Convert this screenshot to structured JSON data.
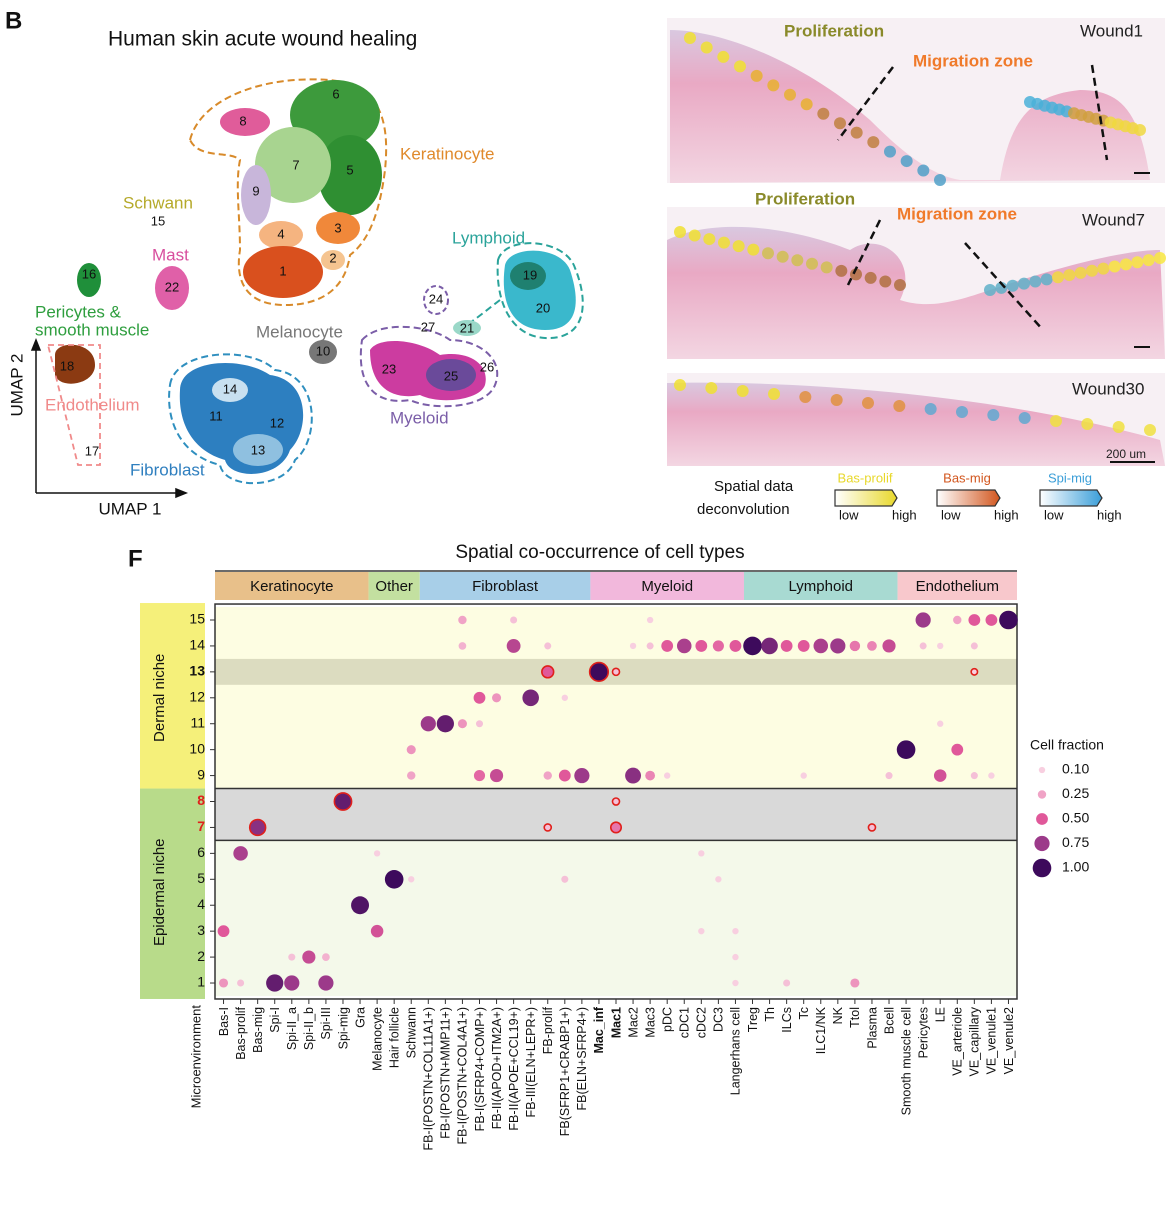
{
  "panel_b": {
    "label": "B",
    "umap": {
      "title": "Human skin acute wound healing",
      "x_label": "UMAP 1",
      "y_label": "UMAP 2",
      "clusters": [
        "1",
        "2",
        "3",
        "4",
        "5",
        "6",
        "7",
        "8",
        "9",
        "10",
        "11",
        "12",
        "13",
        "14",
        "15",
        "16",
        "17",
        "18",
        "19",
        "20",
        "21",
        "22",
        "23",
        "24",
        "25",
        "26",
        "27"
      ],
      "cell_types": [
        {
          "name": "Keratinocyte",
          "color": "#e08a2c"
        },
        {
          "name": "Schwann",
          "color": "#b5a92a"
        },
        {
          "name": "Mast",
          "color": "#d84f9e"
        },
        {
          "name": "Lymphoid",
          "color": "#2aa39a"
        },
        {
          "name": "Pericytes &",
          "color": "#2e9e3e"
        },
        {
          "name": "smooth muscle",
          "color": "#2e9e3e"
        },
        {
          "name": "Melanocyte",
          "color": "#777777"
        },
        {
          "name": "Endothelium",
          "color": "#f08a8a"
        },
        {
          "name": "Myeloid",
          "color": "#7b5ea8"
        },
        {
          "name": "Fibroblast",
          "color": "#2f7fbf"
        }
      ]
    },
    "spatial": {
      "annotations": [
        {
          "text": "Proliferation",
          "color": "#8a8a2a"
        },
        {
          "text": "Migration zone",
          "color": "#f07a2a"
        },
        {
          "text": "Wound1",
          "color": "#222222"
        },
        {
          "text": "Proliferation",
          "color": "#8a8a2a"
        },
        {
          "text": "Migration zone",
          "color": "#f07a2a"
        },
        {
          "text": "Wound7",
          "color": "#222222"
        },
        {
          "text": "Wound30",
          "color": "#222222"
        },
        {
          "text": "200 um",
          "color": "#222222"
        }
      ],
      "legend_title": [
        "Spatial data",
        "deconvolution"
      ],
      "scales": [
        {
          "name": "Bas-prolif",
          "color": "#e8d82a",
          "low": "low",
          "high": "high"
        },
        {
          "name": "Bas-mig",
          "color": "#d2561e",
          "low": "low",
          "high": "high"
        },
        {
          "name": "Spi-mig",
          "color": "#3a9ed8",
          "low": "low",
          "high": "high"
        }
      ]
    }
  },
  "chart_data": {
    "type": "dot",
    "panel_label": "F",
    "title": "Spatial co-occurrence of cell types",
    "y_label": "Microenvironment",
    "groups": [
      {
        "name": "Keratinocyte",
        "color": "#e8c08a",
        "columns": [
          {
            "label": "Bas-I"
          },
          {
            "label": "Bas-prolif"
          },
          {
            "label": "Bas-mig"
          },
          {
            "label": "Spi-I"
          },
          {
            "label": "Spi-II_a"
          },
          {
            "label": "Spi-II_b"
          },
          {
            "label": "Spi-III"
          },
          {
            "label": "Spi-mig"
          },
          {
            "label": "Gra"
          }
        ]
      },
      {
        "name": "Other",
        "color": "#c3e0a0",
        "columns": [
          {
            "label": "Melanocyte"
          },
          {
            "label": "Hair follicle"
          },
          {
            "label": "Schwann"
          }
        ]
      },
      {
        "name": "Fibroblast",
        "color": "#a8cfe8",
        "columns": [
          {
            "label": "FB-I(POSTN+COL11A1+)"
          },
          {
            "label": "FB-I(POSTN+MMP11+)"
          },
          {
            "label": "FB-I(POSTN+COL4A1+)"
          },
          {
            "label": "FB-I(SFRP4+COMP+)"
          },
          {
            "label": "FB-II(APOD+ITM2A+)"
          },
          {
            "label": "FB-II(APOE+CCL19+)"
          },
          {
            "label": "FB-III(ELN+LEPR+)"
          },
          {
            "label": "FB-prolif"
          },
          {
            "label": "FB(SFRP1+CRABP1+)"
          },
          {
            "label": "FB(ELN+SFRP4+)"
          }
        ]
      },
      {
        "name": "Myeloid",
        "color": "#f2b8dc",
        "columns": [
          {
            "label": "Mac_inf",
            "bold": true
          },
          {
            "label": "Mac1",
            "bold": true
          },
          {
            "label": "Mac2"
          },
          {
            "label": "Mac3"
          },
          {
            "label": "pDC"
          },
          {
            "label": "cDC1"
          },
          {
            "label": "cDC2"
          },
          {
            "label": "DC3"
          },
          {
            "label": "Langerhans cell"
          }
        ]
      },
      {
        "name": "Lymphoid",
        "color": "#a8dad2",
        "columns": [
          {
            "label": "Treg"
          },
          {
            "label": "Th"
          },
          {
            "label": "ILCs"
          },
          {
            "label": "Tc"
          },
          {
            "label": "ILC1/NK"
          },
          {
            "label": "NK"
          },
          {
            "label": "Ttol"
          },
          {
            "label": "Plasma"
          },
          {
            "label": "Bcell"
          }
        ]
      },
      {
        "name": "Endothelium",
        "color": "#f8c8cc",
        "columns": [
          {
            "label": "Smooth muscle cell"
          },
          {
            "label": "Pericytes"
          },
          {
            "label": "LE"
          },
          {
            "label": "VE_arteriole"
          },
          {
            "label": "VE_capillary"
          },
          {
            "label": "VE_venule1"
          },
          {
            "label": "VE_venule2"
          }
        ]
      }
    ],
    "niches": [
      {
        "name": "Dermal niche",
        "color": "#f5f07a",
        "plot_color": "#fdfde2",
        "rows": [
          {
            "label": "15"
          },
          {
            "label": "14"
          },
          {
            "label": "13",
            "bold": true,
            "band": "#dcdcc0"
          },
          {
            "label": "12"
          },
          {
            "label": "11"
          },
          {
            "label": "10"
          },
          {
            "label": "9"
          }
        ]
      },
      {
        "name": "Epidermal niche",
        "color": "#b8db8a",
        "plot_color": "#f4f9ea",
        "rows": [
          {
            "label": "8",
            "color": "#e0201b",
            "band": "#d9d9d9"
          },
          {
            "label": "7",
            "color": "#e0201b",
            "band": "#d9d9d9"
          },
          {
            "label": "6"
          },
          {
            "label": "5"
          },
          {
            "label": "4"
          },
          {
            "label": "3"
          },
          {
            "label": "2"
          },
          {
            "label": "1"
          }
        ]
      }
    ],
    "highlight_color": "#e0201b",
    "points": [
      {
        "x": "FB-I(POSTN+COL4A1+)",
        "y": "15",
        "value": 0.25
      },
      {
        "x": "FB-II(APOE+CCL19+)",
        "y": "15",
        "value": 0.15
      },
      {
        "x": "Mac3",
        "y": "15",
        "value": 0.1
      },
      {
        "x": "Pericytes",
        "y": "15",
        "value": 0.75
      },
      {
        "x": "VE_arteriole",
        "y": "15",
        "value": 0.25
      },
      {
        "x": "VE_capillary",
        "y": "15",
        "value": 0.5
      },
      {
        "x": "VE_venule1",
        "y": "15",
        "value": 0.5
      },
      {
        "x": "VE_venule2",
        "y": "15",
        "value": 1.0
      },
      {
        "x": "FB-I(POSTN+COL4A1+)",
        "y": "14",
        "value": 0.2
      },
      {
        "x": "FB-II(APOE+CCL19+)",
        "y": "14",
        "value": 0.65
      },
      {
        "x": "FB-prolif",
        "y": "14",
        "value": 0.15
      },
      {
        "x": "Mac2",
        "y": "14",
        "value": 0.1
      },
      {
        "x": "Mac3",
        "y": "14",
        "value": 0.15
      },
      {
        "x": "pDC",
        "y": "14",
        "value": 0.5
      },
      {
        "x": "cDC1",
        "y": "14",
        "value": 0.7
      },
      {
        "x": "cDC2",
        "y": "14",
        "value": 0.5
      },
      {
        "x": "DC3",
        "y": "14",
        "value": 0.45
      },
      {
        "x": "Langerhans cell",
        "y": "14",
        "value": 0.5
      },
      {
        "x": "Treg",
        "y": "14",
        "value": 1.0
      },
      {
        "x": "Th",
        "y": "14",
        "value": 0.85
      },
      {
        "x": "ILCs",
        "y": "14",
        "value": 0.5
      },
      {
        "x": "Tc",
        "y": "14",
        "value": 0.5
      },
      {
        "x": "ILC1/NK",
        "y": "14",
        "value": 0.7
      },
      {
        "x": "NK",
        "y": "14",
        "value": 0.75
      },
      {
        "x": "Ttol",
        "y": "14",
        "value": 0.4
      },
      {
        "x": "Plasma",
        "y": "14",
        "value": 0.35
      },
      {
        "x": "Bcell",
        "y": "14",
        "value": 0.6
      },
      {
        "x": "Pericytes",
        "y": "14",
        "value": 0.15
      },
      {
        "x": "LE",
        "y": "14",
        "value": 0.1
      },
      {
        "x": "VE_capillary",
        "y": "14",
        "value": 0.15
      },
      {
        "x": "FB-prolif",
        "y": "13",
        "value": 0.5,
        "highlight": true
      },
      {
        "x": "Mac_inf",
        "y": "13",
        "value": 1.0,
        "highlight": true
      },
      {
        "x": "Mac1",
        "y": "13",
        "value": 0.15,
        "highlight": true
      },
      {
        "x": "VE_capillary",
        "y": "13",
        "value": 0.1,
        "highlight": true
      },
      {
        "x": "FB-I(SFRP4+COMP+)",
        "y": "12",
        "value": 0.5
      },
      {
        "x": "FB-II(APOD+ITM2A+)",
        "y": "12",
        "value": 0.3
      },
      {
        "x": "FB-III(ELN+LEPR+)",
        "y": "12",
        "value": 0.85
      },
      {
        "x": "FB(SFRP1+CRABP1+)",
        "y": "12",
        "value": 0.1
      },
      {
        "x": "FB-I(POSTN+COL11A1+)",
        "y": "11",
        "value": 0.75
      },
      {
        "x": "FB-I(POSTN+MMP11+)",
        "y": "11",
        "value": 0.9
      },
      {
        "x": "FB-I(POSTN+COL4A1+)",
        "y": "11",
        "value": 0.3
      },
      {
        "x": "FB-I(SFRP4+COMP+)",
        "y": "11",
        "value": 0.15
      },
      {
        "x": "LE",
        "y": "11",
        "value": 0.1
      },
      {
        "x": "Schwann",
        "y": "10",
        "value": 0.3
      },
      {
        "x": "Smooth muscle cell",
        "y": "10",
        "value": 1.0
      },
      {
        "x": "VE_arteriole",
        "y": "10",
        "value": 0.5
      },
      {
        "x": "Schwann",
        "y": "9",
        "value": 0.25
      },
      {
        "x": "FB-I(SFRP4+COMP+)",
        "y": "9",
        "value": 0.45
      },
      {
        "x": "FB-II(APOD+ITM2A+)",
        "y": "9",
        "value": 0.6
      },
      {
        "x": "FB-prolif",
        "y": "9",
        "value": 0.25
      },
      {
        "x": "FB(SFRP1+CRABP1+)",
        "y": "9",
        "value": 0.5
      },
      {
        "x": "FB(ELN+SFRP4+)",
        "y": "9",
        "value": 0.75
      },
      {
        "x": "Mac2",
        "y": "9",
        "value": 0.8
      },
      {
        "x": "Mac3",
        "y": "9",
        "value": 0.35
      },
      {
        "x": "pDC",
        "y": "9",
        "value": 0.1
      },
      {
        "x": "Tc",
        "y": "9",
        "value": 0.1
      },
      {
        "x": "Bcell",
        "y": "9",
        "value": 0.15
      },
      {
        "x": "LE",
        "y": "9",
        "value": 0.55
      },
      {
        "x": "VE_capillary",
        "y": "9",
        "value": 0.15
      },
      {
        "x": "VE_venule1",
        "y": "9",
        "value": 0.1
      },
      {
        "x": "Spi-mig",
        "y": "8",
        "value": 0.9,
        "highlight": true
      },
      {
        "x": "Mac1",
        "y": "8",
        "value": 0.15,
        "highlight": true
      },
      {
        "x": "Bas-mig",
        "y": "7",
        "value": 0.8,
        "highlight": true
      },
      {
        "x": "FB-prolif",
        "y": "7",
        "value": 0.15,
        "highlight": true
      },
      {
        "x": "Mac1",
        "y": "7",
        "value": 0.4,
        "highlight": true
      },
      {
        "x": "Plasma",
        "y": "7",
        "value": 0.15,
        "highlight": true
      },
      {
        "x": "Bas-prolif",
        "y": "6",
        "value": 0.7
      },
      {
        "x": "Melanocyte",
        "y": "6",
        "value": 0.1
      },
      {
        "x": "cDC2",
        "y": "6",
        "value": 0.1
      },
      {
        "x": "Hair follicle",
        "y": "5",
        "value": 1.0
      },
      {
        "x": "Schwann",
        "y": "5",
        "value": 0.1
      },
      {
        "x": "FB(SFRP1+CRABP1+)",
        "y": "5",
        "value": 0.15
      },
      {
        "x": "DC3",
        "y": "5",
        "value": 0.1
      },
      {
        "x": "Gra",
        "y": "4",
        "value": 0.95
      },
      {
        "x": "Bas-I",
        "y": "3",
        "value": 0.5
      },
      {
        "x": "Melanocyte",
        "y": "3",
        "value": 0.55
      },
      {
        "x": "cDC2",
        "y": "3",
        "value": 0.1
      },
      {
        "x": "Langerhans cell",
        "y": "3",
        "value": 0.1
      },
      {
        "x": "Spi-II_a",
        "y": "2",
        "value": 0.15
      },
      {
        "x": "Spi-II_b",
        "y": "2",
        "value": 0.6
      },
      {
        "x": "Spi-III",
        "y": "2",
        "value": 0.2
      },
      {
        "x": "Langerhans cell",
        "y": "2",
        "value": 0.1
      },
      {
        "x": "Bas-I",
        "y": "1",
        "value": 0.3
      },
      {
        "x": "Bas-prolif",
        "y": "1",
        "value": 0.15
      },
      {
        "x": "Spi-I",
        "y": "1",
        "value": 0.9
      },
      {
        "x": "Spi-II_a",
        "y": "1",
        "value": 0.75
      },
      {
        "x": "Spi-III",
        "y": "1",
        "value": 0.75
      },
      {
        "x": "Langerhans cell",
        "y": "1",
        "value": 0.1
      },
      {
        "x": "ILCs",
        "y": "1",
        "value": 0.15
      },
      {
        "x": "Ttol",
        "y": "1",
        "value": 0.3
      }
    ],
    "size_legend": {
      "title": "Cell fraction",
      "ticks": [
        {
          "value": 0.1,
          "label": "0.10"
        },
        0.25,
        {
          "value": 0.5,
          "label": "0.50"
        },
        0.75,
        {
          "value": 1,
          "label": "1.00"
        }
      ],
      "colors": [
        "#f8cfe0",
        "#f0a3c6",
        "#e0589a",
        "#9c3a8a",
        "#3d0a5c"
      ]
    }
  }
}
